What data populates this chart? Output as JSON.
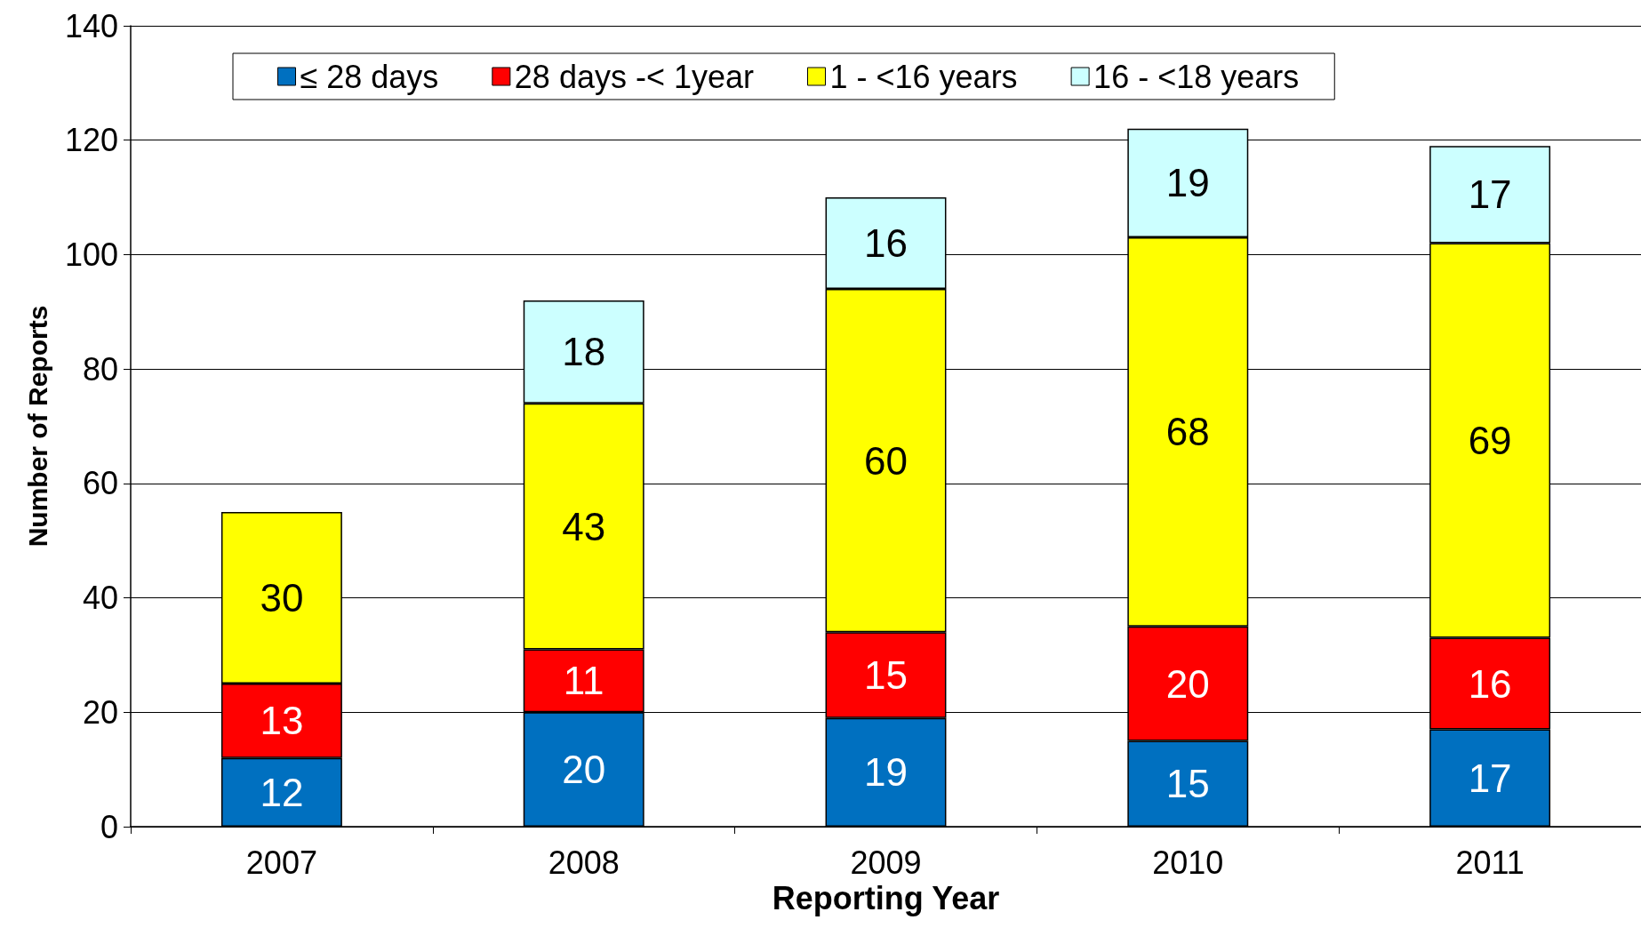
{
  "chart_data": {
    "type": "bar",
    "stacked": true,
    "xlabel": "Reporting Year",
    "ylabel": "Number of Reports",
    "categories": [
      "2007",
      "2008",
      "2009",
      "2010",
      "2011"
    ],
    "series": [
      {
        "name": "≤ 28 days",
        "color": "#0070c0",
        "values": [
          12,
          20,
          19,
          15,
          17
        ]
      },
      {
        "name": "28 days -< 1year",
        "color": "#ff0000",
        "values": [
          13,
          11,
          15,
          20,
          16
        ]
      },
      {
        "name": "1 - <16 years",
        "color": "#ffff00",
        "values": [
          30,
          43,
          60,
          68,
          69
        ]
      },
      {
        "name": "16 - <18 years",
        "color": "#ccffff",
        "values": [
          null,
          18,
          16,
          19,
          17
        ]
      }
    ],
    "ylim": [
      0,
      140
    ],
    "yticks": [
      0,
      20,
      40,
      60,
      80,
      100,
      120,
      140
    ],
    "grid": "y",
    "legend": "top",
    "data_labels": true
  }
}
